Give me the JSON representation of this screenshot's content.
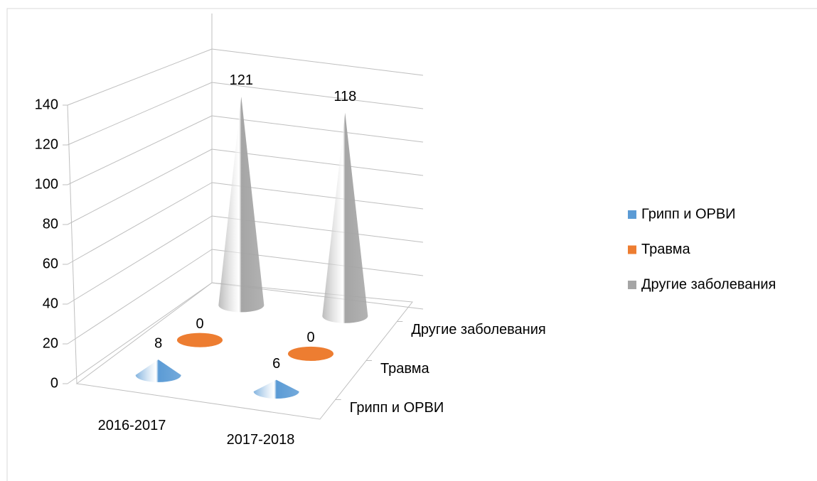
{
  "chart_data": {
    "type": "cone3d",
    "categories": [
      "2016-2017",
      "2017-2018"
    ],
    "series": [
      {
        "name": "Грипп и ОРВИ",
        "color": "#5b9bd5",
        "values": [
          8,
          6
        ]
      },
      {
        "name": "Травма",
        "color": "#ed7d31",
        "values": [
          0,
          0
        ]
      },
      {
        "name": "Другие заболевания",
        "color": "#a5a5a5",
        "values": [
          121,
          118
        ]
      }
    ],
    "ylim": [
      0,
      140
    ],
    "yticks": [
      0,
      20,
      40,
      60,
      80,
      100,
      120,
      140
    ],
    "grid": true,
    "legend": "right"
  }
}
